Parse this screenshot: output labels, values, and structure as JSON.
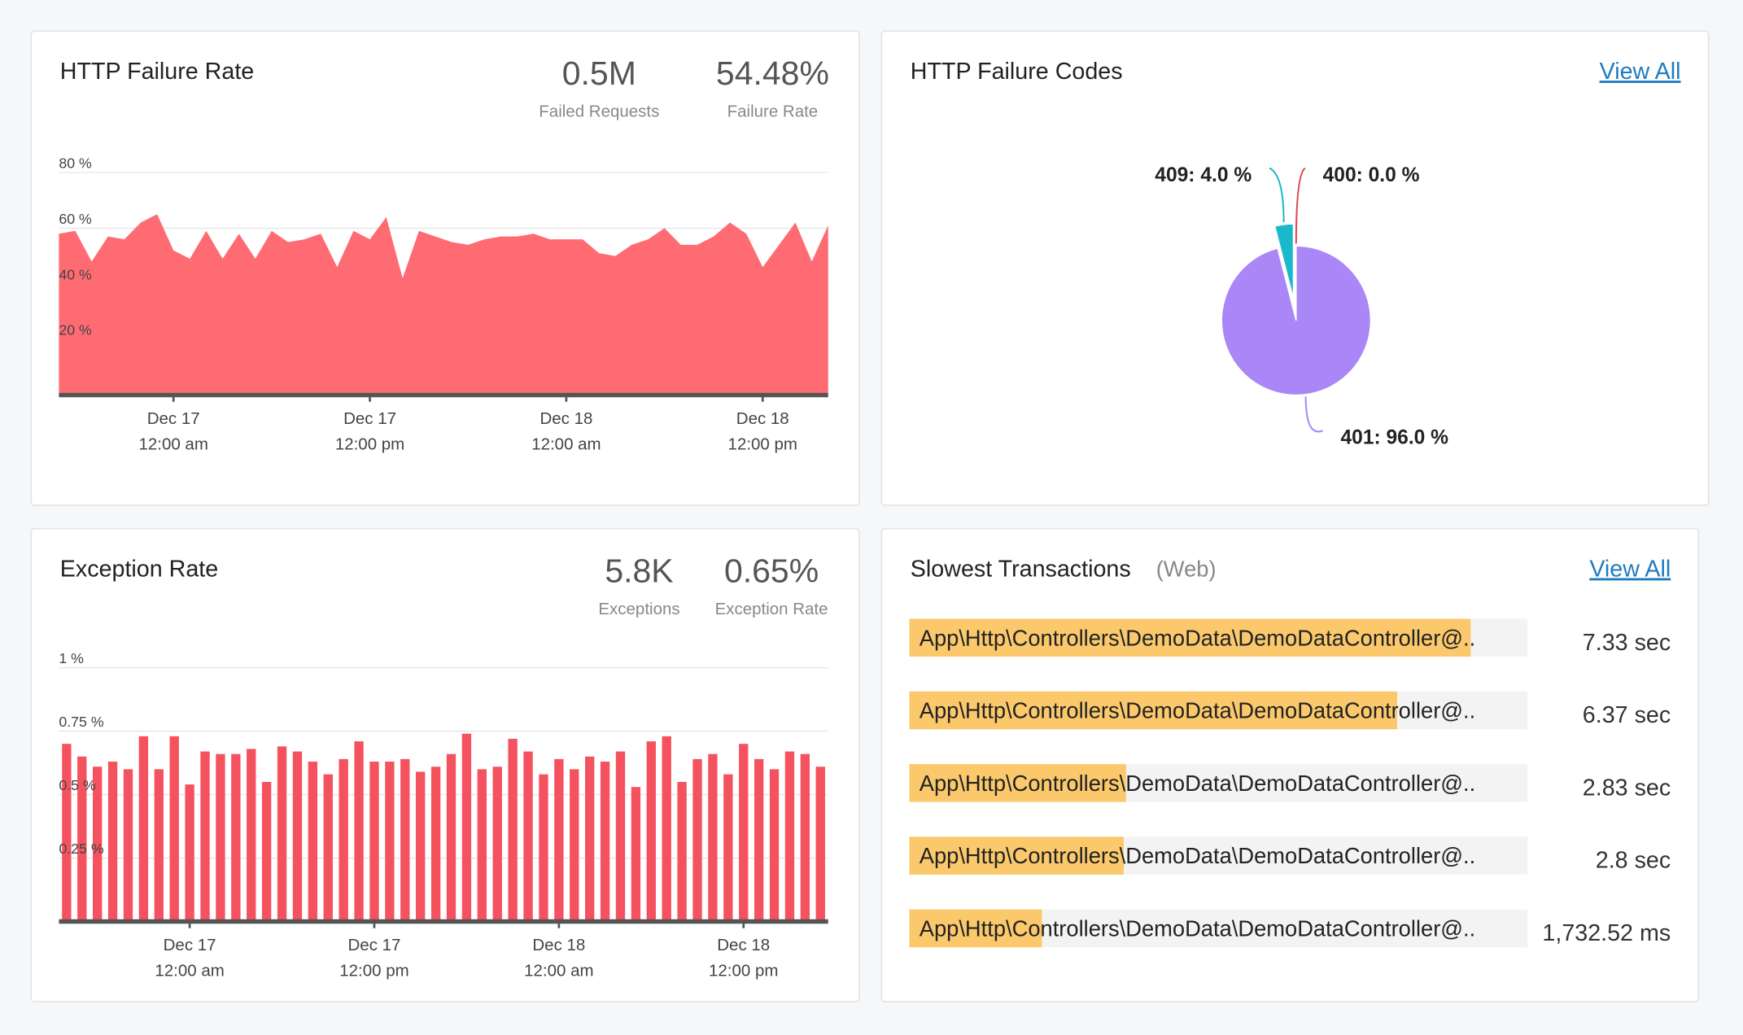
{
  "chart_data": [
    {
      "type": "area",
      "title": "HTTP Failure Rate",
      "stats": [
        {
          "value": "0.5M",
          "label": "Failed Requests"
        },
        {
          "value": "54.48%",
          "label": "Failure Rate"
        }
      ],
      "x": [
        0,
        1,
        2,
        3,
        4,
        5,
        6,
        7,
        8,
        9,
        10,
        11,
        12,
        13,
        14,
        15,
        16,
        17,
        18,
        19,
        20,
        21,
        22,
        23,
        24,
        25,
        26,
        27,
        28,
        29,
        30,
        31,
        32,
        33,
        34,
        35,
        36,
        37,
        38,
        39,
        40,
        41,
        42,
        43,
        44,
        45,
        46,
        47
      ],
      "values": [
        58,
        59,
        48,
        57,
        56,
        62,
        65,
        52,
        49,
        59,
        49,
        58,
        49,
        59,
        55,
        56,
        58,
        46,
        59,
        56,
        64,
        42,
        59,
        57,
        55,
        54,
        56,
        57,
        57,
        58,
        56,
        56,
        56,
        51,
        50,
        54,
        56,
        60,
        54,
        54,
        57,
        62,
        58,
        46,
        54,
        62,
        48,
        61
      ],
      "color": "#ff6b73",
      "grid": true,
      "xlim": [
        0,
        47
      ],
      "ylim": [
        0,
        80
      ],
      "yticks": [
        {
          "value": 20,
          "label": "20 %"
        },
        {
          "value": 40,
          "label": "40 %"
        },
        {
          "value": 60,
          "label": "60 %"
        },
        {
          "value": 80,
          "label": "80 %"
        }
      ],
      "xticks": [
        {
          "value": 7,
          "label": "Dec 17",
          "sublabel": "12:00 am"
        },
        {
          "value": 19,
          "label": "Dec 17",
          "sublabel": "12:00 pm"
        },
        {
          "value": 31,
          "label": "Dec 18",
          "sublabel": "12:00 am"
        },
        {
          "value": 43,
          "label": "Dec 18",
          "sublabel": "12:00 pm"
        }
      ]
    },
    {
      "type": "bar",
      "title": "Exception Rate",
      "stats": [
        {
          "value": "5.8K",
          "label": "Exceptions"
        },
        {
          "value": "0.65%",
          "label": "Exception Rate"
        }
      ],
      "x": [
        0,
        1,
        2,
        3,
        4,
        5,
        6,
        7,
        8,
        9,
        10,
        11,
        12,
        13,
        14,
        15,
        16,
        17,
        18,
        19,
        20,
        21,
        22,
        23,
        24,
        25,
        26,
        27,
        28,
        29,
        30,
        31,
        32,
        33,
        34,
        35,
        36,
        37,
        38,
        39,
        40,
        41,
        42,
        43,
        44,
        45,
        46,
        47,
        48,
        49
      ],
      "values": [
        0.7,
        0.65,
        0.61,
        0.63,
        0.6,
        0.73,
        0.6,
        0.73,
        0.54,
        0.67,
        0.66,
        0.66,
        0.68,
        0.55,
        0.69,
        0.67,
        0.63,
        0.58,
        0.64,
        0.71,
        0.63,
        0.63,
        0.64,
        0.59,
        0.61,
        0.66,
        0.74,
        0.6,
        0.61,
        0.72,
        0.67,
        0.58,
        0.64,
        0.6,
        0.65,
        0.63,
        0.67,
        0.53,
        0.71,
        0.73,
        0.55,
        0.64,
        0.66,
        0.58,
        0.7,
        0.64,
        0.6,
        0.67,
        0.66,
        0.61
      ],
      "color": "#f5525f",
      "grid": true,
      "xlim": [
        -0.5,
        49.5
      ],
      "ylim": [
        0,
        1
      ],
      "yticks": [
        {
          "value": 0.25,
          "label": "0.25 %"
        },
        {
          "value": 0.5,
          "label": "0.5 %"
        },
        {
          "value": 0.75,
          "label": "0.75 %"
        },
        {
          "value": 1,
          "label": "1 %"
        }
      ],
      "xticks": [
        {
          "value": 8,
          "label": "Dec 17",
          "sublabel": "12:00 am"
        },
        {
          "value": 20,
          "label": "Dec 17",
          "sublabel": "12:00 pm"
        },
        {
          "value": 32,
          "label": "Dec 18",
          "sublabel": "12:00 am"
        },
        {
          "value": 44,
          "label": "Dec 18",
          "sublabel": "12:00 pm"
        }
      ]
    },
    {
      "type": "pie",
      "title": "HTTP Failure Codes",
      "link": "View All",
      "values": [
        4.0,
        0.0,
        96.0
      ],
      "value_labels": [
        "409: 4.0 %",
        "400: 0.0 %",
        "401: 96.0 %"
      ],
      "colors": [
        "#19b8cb",
        "#e2474f",
        "#a987f7"
      ]
    },
    {
      "type": "hbar",
      "title": "Slowest Transactions",
      "subtitle": "(Web)",
      "link": "View All",
      "categories": [
        "App\\Http\\Controllers\\DemoData\\DemoDataController@..",
        "App\\Http\\Controllers\\DemoData\\DemoDataController@..",
        "App\\Http\\Controllers\\DemoData\\DemoDataController@..",
        "App\\Http\\Controllers\\DemoData\\DemoDataController@..",
        "App\\Http\\Controllers\\DemoData\\DemoDataController@.."
      ],
      "values": [
        7.33,
        6.37,
        2.83,
        2.8,
        1.73252
      ],
      "value_labels": [
        "7.33 sec",
        "6.37 sec",
        "2.83 sec",
        "2.8 sec",
        "1,732.52 ms"
      ],
      "color": "#fbc96b",
      "track_color": "#f3f3f3",
      "xlim": [
        0,
        8.07
      ]
    }
  ]
}
